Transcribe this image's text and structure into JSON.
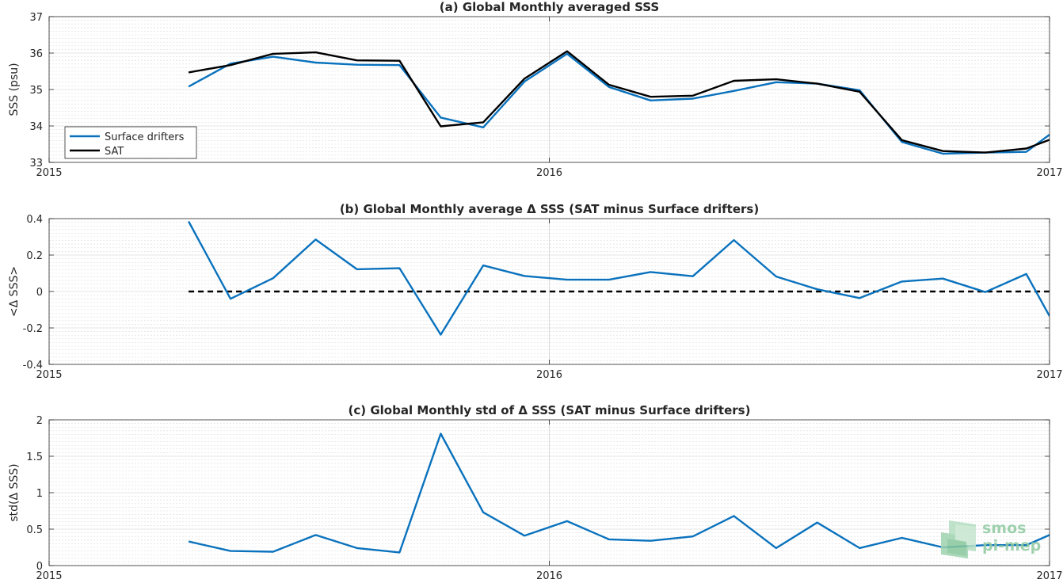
{
  "colors": {
    "drifters": "#0a72bd",
    "sat": "#000000",
    "zero_line": "#000000",
    "logo": "#8fc9a1"
  },
  "logo": {
    "line1": "smos",
    "line2": "pi-mep"
  },
  "chart_data": [
    {
      "type": "line",
      "title": "(a) Global Monthly averaged SSS",
      "ylabel": "SSS (psu)",
      "xlabel": "",
      "xlim": [
        2015.0,
        2017.0
      ],
      "ylim": [
        33,
        37
      ],
      "xticks": [
        2015,
        2016,
        2017
      ],
      "xtick_labels": [
        "2015",
        "2016",
        "2017"
      ],
      "yticks": [
        33,
        34,
        35,
        36,
        37
      ],
      "ytick_labels": [
        "33",
        "34",
        "35",
        "36",
        "37"
      ],
      "grid": true,
      "legend": "bottom-left",
      "x": [
        2015.2788,
        2015.3627,
        2015.4478,
        2015.5329,
        2015.6153,
        2015.7005,
        2015.7829,
        2015.868,
        2015.9504,
        2016.0355,
        2016.1193,
        2016.2024,
        2016.2869,
        2016.3689,
        2016.4536,
        2016.5355,
        2016.6202,
        2016.7049,
        2016.7869,
        2016.8716,
        2016.9536,
        2017.0
      ],
      "series": [
        {
          "name": "Surface drifters",
          "color": "#0a72bd",
          "values": [
            35.08,
            35.71,
            35.9,
            35.74,
            35.68,
            35.67,
            34.23,
            33.96,
            35.22,
            35.98,
            35.07,
            34.7,
            34.75,
            34.96,
            35.2,
            35.16,
            34.98,
            33.56,
            33.24,
            33.27,
            33.29,
            33.76
          ]
        },
        {
          "name": "SAT",
          "color": "#000000",
          "values": [
            35.47,
            35.67,
            35.98,
            36.02,
            35.8,
            35.79,
            33.99,
            34.1,
            35.3,
            36.05,
            35.13,
            34.8,
            34.83,
            35.24,
            35.28,
            35.16,
            34.94,
            33.61,
            33.31,
            33.27,
            33.38,
            33.62
          ]
        }
      ]
    },
    {
      "type": "line",
      "title": "(b) Global Monthly average Δ SSS (SAT minus Surface drifters)",
      "ylabel": "<Δ SSS>",
      "xlabel": "",
      "xlim": [
        2015.0,
        2017.0
      ],
      "ylim": [
        -0.4,
        0.4
      ],
      "xticks": [
        2015,
        2016,
        2017
      ],
      "xtick_labels": [
        "2015",
        "2016",
        "2017"
      ],
      "yticks": [
        -0.4,
        -0.2,
        0,
        0.2,
        0.4
      ],
      "ytick_labels": [
        "-0.4",
        "-0.2",
        "0",
        "0.2",
        "0.4"
      ],
      "grid": true,
      "reference_line": 0,
      "x": [
        2015.2788,
        2015.3627,
        2015.4478,
        2015.5329,
        2015.6153,
        2015.7005,
        2015.7829,
        2015.868,
        2015.9504,
        2016.0355,
        2016.1193,
        2016.2024,
        2016.2869,
        2016.3689,
        2016.4536,
        2016.5355,
        2016.6202,
        2016.7049,
        2016.7869,
        2016.8716,
        2016.9536,
        2017.0
      ],
      "series": [
        {
          "name": "",
          "color": "#0a72bd",
          "values": [
            0.385,
            -0.04,
            0.073,
            0.285,
            0.122,
            0.128,
            -0.237,
            0.143,
            0.085,
            0.065,
            0.065,
            0.107,
            0.084,
            0.282,
            0.082,
            0.012,
            -0.036,
            0.055,
            0.071,
            -0.003,
            0.096,
            -0.135
          ]
        }
      ]
    },
    {
      "type": "line",
      "title": "(c) Global Monthly std of Δ SSS (SAT minus Surface drifters)",
      "ylabel": "std(Δ SSS)",
      "xlabel": "",
      "xlim": [
        2015.0,
        2017.0
      ],
      "ylim": [
        0,
        2
      ],
      "xticks": [
        2015,
        2016,
        2017
      ],
      "xtick_labels": [
        "2015",
        "2016",
        "2017"
      ],
      "yticks": [
        0,
        0.5,
        1,
        1.5,
        2
      ],
      "ytick_labels": [
        "0",
        "0.5",
        "1",
        "1.5",
        "2"
      ],
      "grid": true,
      "x": [
        2015.2788,
        2015.3627,
        2015.4478,
        2015.5329,
        2015.6153,
        2015.7005,
        2015.7829,
        2015.868,
        2015.9504,
        2016.0355,
        2016.1193,
        2016.2024,
        2016.2869,
        2016.3689,
        2016.4536,
        2016.5355,
        2016.6202,
        2016.7049,
        2016.7869,
        2016.8716,
        2016.9536,
        2017.0
      ],
      "series": [
        {
          "name": "",
          "color": "#0a72bd",
          "values": [
            0.33,
            0.2,
            0.19,
            0.42,
            0.24,
            0.18,
            1.81,
            0.73,
            0.41,
            0.61,
            0.36,
            0.34,
            0.4,
            0.68,
            0.24,
            0.59,
            0.24,
            0.38,
            0.25,
            0.28,
            0.28,
            0.42
          ]
        }
      ]
    }
  ]
}
